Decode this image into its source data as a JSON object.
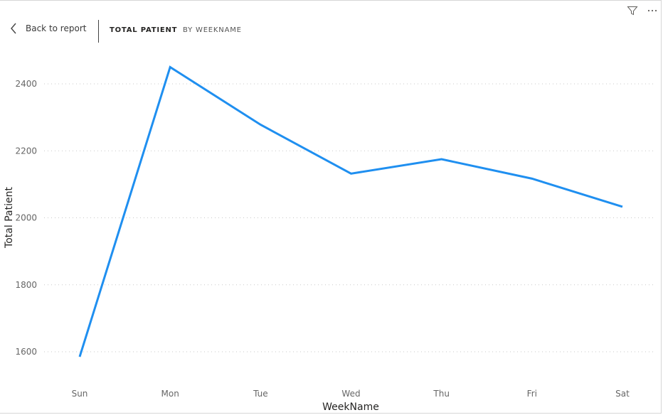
{
  "header": {
    "back_label": "Back to report",
    "crumbs": [
      "TOTAL PATIENT",
      "BY WEEKNAME"
    ]
  },
  "toolbar_icons": [
    "filter-icon",
    "more-options-icon"
  ],
  "colors": {
    "line": "#1f8ff0"
  },
  "chart_data": {
    "type": "line",
    "categories": [
      "Sun",
      "Mon",
      "Tue",
      "Wed",
      "Thu",
      "Fri",
      "Sat"
    ],
    "series": [
      {
        "values": [
          1585,
          2450,
          2278,
          2132,
          2175,
          2117,
          2033
        ]
      }
    ],
    "xlabel": "WeekName",
    "ylabel": "Total Patient",
    "yticks": [
      1600,
      1800,
      2000,
      2200,
      2400
    ],
    "ylim": [
      1500,
      2500
    ],
    "grid": true
  }
}
